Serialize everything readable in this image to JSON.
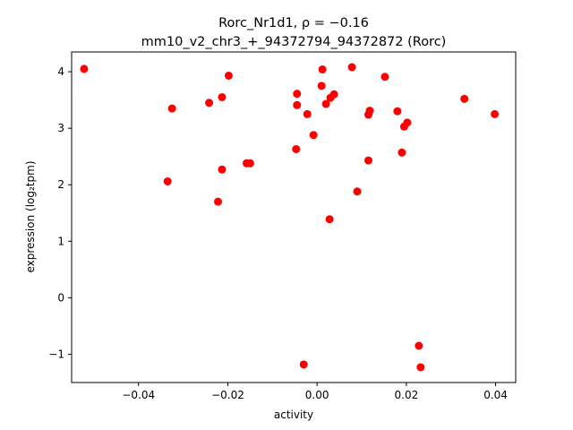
{
  "chart_data": {
    "type": "scatter",
    "title_line1": "Rorc_Nr1d1, ρ = −0.16",
    "title_line2": "mm10_v2_chr3_+_94372794_94372872 (Rorc)",
    "xlabel": "activity",
    "ylabel": "expression (log₂tpm)",
    "xlim": [
      -0.055,
      0.0445
    ],
    "ylim": [
      -1.5,
      4.35
    ],
    "xticks": [
      -0.04,
      -0.02,
      0.0,
      0.02,
      0.04
    ],
    "xtick_labels": [
      "−0.04",
      "−0.02",
      "0.00",
      "0.02",
      "0.04"
    ],
    "yticks": [
      -1,
      0,
      1,
      2,
      3,
      4
    ],
    "ytick_labels": [
      "−1",
      "0",
      "1",
      "2",
      "3",
      "4"
    ],
    "marker_color": "#ff0000",
    "grid": false,
    "points": [
      {
        "x": -0.0522,
        "y": 4.05
      },
      {
        "x": -0.0325,
        "y": 3.35
      },
      {
        "x": -0.0335,
        "y": 2.06
      },
      {
        "x": -0.0242,
        "y": 3.45
      },
      {
        "x": -0.0213,
        "y": 3.55
      },
      {
        "x": -0.0198,
        "y": 3.93
      },
      {
        "x": -0.0213,
        "y": 2.27
      },
      {
        "x": -0.0222,
        "y": 1.7
      },
      {
        "x": -0.0158,
        "y": 2.38
      },
      {
        "x": -0.015,
        "y": 2.38
      },
      {
        "x": -0.0045,
        "y": 3.61
      },
      {
        "x": -0.0045,
        "y": 3.41
      },
      {
        "x": -0.0047,
        "y": 2.63
      },
      {
        "x": -0.0022,
        "y": 3.25
      },
      {
        "x": -0.0008,
        "y": 2.88
      },
      {
        "x": 0.0012,
        "y": 4.04
      },
      {
        "x": 0.001,
        "y": 3.75
      },
      {
        "x": 0.002,
        "y": 3.43
      },
      {
        "x": 0.003,
        "y": 3.54
      },
      {
        "x": 0.0038,
        "y": 3.6
      },
      {
        "x": 0.0028,
        "y": 1.39
      },
      {
        "x": -0.003,
        "y": -1.18
      },
      {
        "x": 0.0078,
        "y": 4.08
      },
      {
        "x": 0.009,
        "y": 1.88
      },
      {
        "x": 0.0115,
        "y": 3.24
      },
      {
        "x": 0.0118,
        "y": 3.31
      },
      {
        "x": 0.0115,
        "y": 2.43
      },
      {
        "x": 0.0152,
        "y": 3.91
      },
      {
        "x": 0.018,
        "y": 3.3
      },
      {
        "x": 0.0195,
        "y": 3.03
      },
      {
        "x": 0.0202,
        "y": 3.1
      },
      {
        "x": 0.019,
        "y": 2.57
      },
      {
        "x": 0.0228,
        "y": -0.85
      },
      {
        "x": 0.0232,
        "y": -1.23
      },
      {
        "x": 0.033,
        "y": 3.52
      },
      {
        "x": 0.0398,
        "y": 3.25
      }
    ]
  }
}
